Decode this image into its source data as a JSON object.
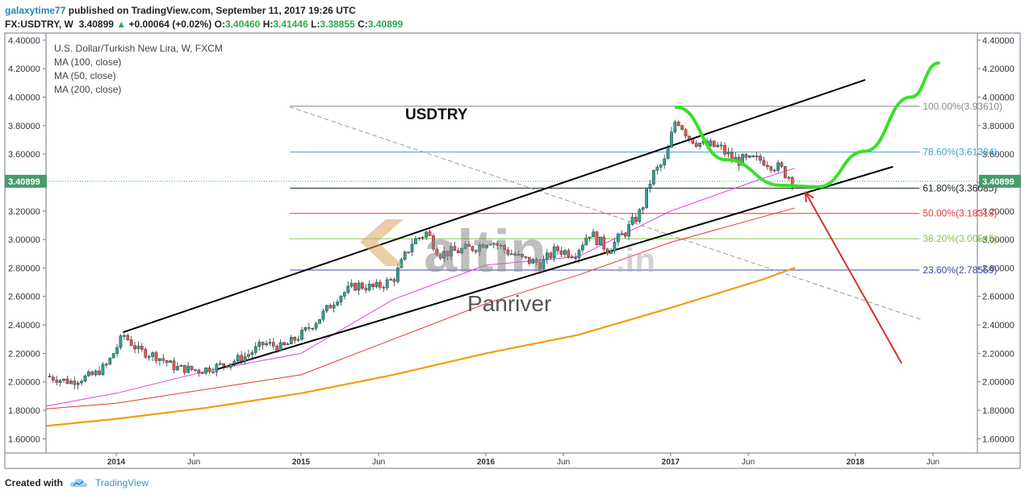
{
  "header": {
    "username": "galaxytime77",
    "published_text": "published on TradingView.com, September 11, 2017 19:26 UTC"
  },
  "quote": {
    "symbol": "FX:USDTRY, W",
    "last": "3.40899",
    "change": "+0.00064 (+0.02%)",
    "open_label": "O:",
    "open": "3.40460",
    "high_label": "H:",
    "high": "3.41446",
    "low_label": "L:",
    "low": "3.38855",
    "close_label": "C:",
    "close": "3.40899"
  },
  "legend": {
    "title": "U.S. Dollar/Turkish New Lira, W, FXCM",
    "ma100": "MA (100, close)",
    "ma50": "MA (50, close)",
    "ma200": "MA (200, close)"
  },
  "annotations": {
    "symbol_label": "USDTRY",
    "watermark_brand": "altin",
    "watermark_tld": ".in",
    "watermark_sub": "Panriver",
    "price_tag": "3.40899"
  },
  "footer": {
    "created_with": "Created with",
    "brand": "TradingView"
  },
  "colors": {
    "candle_up": "#26a69a",
    "candle_down": "#ef5350",
    "ma50": "#e040e0",
    "ma100": "#e53935",
    "ma200": "#f39c12",
    "projection": "#39e028",
    "arrow": "#d32f2f",
    "fib_100": "#888888",
    "fib_786": "#3aa0d8",
    "fib_618": "#222222",
    "fib_50": "#e53935",
    "fib_382": "#8bc34a",
    "fib_236": "#3949ab"
  },
  "chart_data": {
    "type": "candlestick",
    "title": "U.S. Dollar/Turkish New Lira, W, FXCM",
    "y_ticks": [
      "4.40000",
      "4.20000",
      "4.00000",
      "3.80000",
      "3.60000",
      "3.40000",
      "3.20000",
      "3.00000",
      "2.80000",
      "2.60000",
      "2.40000",
      "2.20000",
      "2.00000",
      "1.80000",
      "1.60000"
    ],
    "ylim": [
      1.5,
      4.45
    ],
    "x_ticks": [
      {
        "label": "2014",
        "t": 2014.0
      },
      {
        "label": "Jun",
        "t": 2014.42
      },
      {
        "label": "2015",
        "t": 2015.0
      },
      {
        "label": "Jun",
        "t": 2015.42
      },
      {
        "label": "2016",
        "t": 2016.0
      },
      {
        "label": "Jun",
        "t": 2016.42
      },
      {
        "label": "2017",
        "t": 2017.0
      },
      {
        "label": "Jun",
        "t": 2017.42
      },
      {
        "label": "2018",
        "t": 2018.0
      },
      {
        "label": "Jun",
        "t": 2018.42
      }
    ],
    "xlim": [
      2013.62,
      2018.66
    ],
    "price_path": [
      [
        2013.62,
        2.04
      ],
      [
        2013.75,
        2.0
      ],
      [
        2013.88,
        2.05
      ],
      [
        2013.95,
        2.12
      ],
      [
        2014.04,
        2.33
      ],
      [
        2014.12,
        2.22
      ],
      [
        2014.22,
        2.18
      ],
      [
        2014.32,
        2.1
      ],
      [
        2014.45,
        2.08
      ],
      [
        2014.58,
        2.12
      ],
      [
        2014.7,
        2.18
      ],
      [
        2014.8,
        2.27
      ],
      [
        2014.9,
        2.24
      ],
      [
        2015.0,
        2.33
      ],
      [
        2015.1,
        2.45
      ],
      [
        2015.2,
        2.6
      ],
      [
        2015.3,
        2.68
      ],
      [
        2015.4,
        2.66
      ],
      [
        2015.5,
        2.72
      ],
      [
        2015.6,
        2.98
      ],
      [
        2015.68,
        3.05
      ],
      [
        2015.75,
        2.9
      ],
      [
        2015.85,
        2.92
      ],
      [
        2015.95,
        2.95
      ],
      [
        2016.02,
        3.0
      ],
      [
        2016.1,
        2.93
      ],
      [
        2016.2,
        2.86
      ],
      [
        2016.3,
        2.83
      ],
      [
        2016.38,
        2.93
      ],
      [
        2016.48,
        2.9
      ],
      [
        2016.56,
        3.05
      ],
      [
        2016.66,
        2.93
      ],
      [
        2016.76,
        3.06
      ],
      [
        2016.84,
        3.2
      ],
      [
        2016.9,
        3.45
      ],
      [
        2016.97,
        3.55
      ],
      [
        2017.03,
        3.86
      ],
      [
        2017.1,
        3.72
      ],
      [
        2017.18,
        3.66
      ],
      [
        2017.26,
        3.65
      ],
      [
        2017.34,
        3.56
      ],
      [
        2017.42,
        3.55
      ],
      [
        2017.5,
        3.56
      ],
      [
        2017.56,
        3.52
      ],
      [
        2017.6,
        3.49
      ],
      [
        2017.67,
        3.41
      ]
    ],
    "ma50": [
      [
        2013.62,
        1.83
      ],
      [
        2014.0,
        1.92
      ],
      [
        2014.5,
        2.08
      ],
      [
        2015.0,
        2.2
      ],
      [
        2015.5,
        2.58
      ],
      [
        2016.0,
        2.82
      ],
      [
        2016.5,
        2.88
      ],
      [
        2017.0,
        3.2
      ],
      [
        2017.5,
        3.43
      ],
      [
        2017.67,
        3.5
      ]
    ],
    "ma100": [
      [
        2013.62,
        1.81
      ],
      [
        2014.0,
        1.85
      ],
      [
        2014.5,
        1.95
      ],
      [
        2015.0,
        2.05
      ],
      [
        2015.5,
        2.3
      ],
      [
        2016.0,
        2.55
      ],
      [
        2016.5,
        2.75
      ],
      [
        2017.0,
        2.98
      ],
      [
        2017.5,
        3.16
      ],
      [
        2017.67,
        3.22
      ]
    ],
    "ma200": [
      [
        2013.62,
        1.69
      ],
      [
        2014.0,
        1.74
      ],
      [
        2014.5,
        1.82
      ],
      [
        2015.0,
        1.92
      ],
      [
        2015.5,
        2.05
      ],
      [
        2016.0,
        2.2
      ],
      [
        2016.5,
        2.33
      ],
      [
        2017.0,
        2.52
      ],
      [
        2017.5,
        2.72
      ],
      [
        2017.67,
        2.8
      ]
    ],
    "fib_levels": [
      {
        "label": "100.00%(3.93610)",
        "value": 3.9361,
        "color": "#888888"
      },
      {
        "label": "78.60%(3.61384)",
        "value": 3.61384,
        "color": "#3aa0d8"
      },
      {
        "label": "61.80%(3.36085)",
        "value": 3.36085,
        "color": "#222222"
      },
      {
        "label": "50.00%(3.18315)",
        "value": 3.18315,
        "color": "#e53935"
      },
      {
        "label": "38.20%(3.00545)",
        "value": 3.00545,
        "color": "#8bc34a"
      },
      {
        "label": "23.60%(2.78559)",
        "value": 2.78559,
        "color": "#3949ab"
      }
    ],
    "fib_start_t": 2014.94,
    "fib_end_t": 2017.67,
    "channel_upper": [
      [
        2014.04,
        2.35
      ],
      [
        2018.05,
        4.12
      ]
    ],
    "channel_lower": [
      [
        2014.55,
        2.09
      ],
      [
        2018.2,
        3.51
      ]
    ],
    "dashed_trend": [
      [
        2014.94,
        3.93
      ],
      [
        2018.35,
        2.44
      ]
    ],
    "green_curve": [
      [
        2017.03,
        3.93
      ],
      [
        2017.3,
        3.56
      ],
      [
        2017.6,
        3.38
      ],
      [
        2017.8,
        3.37
      ],
      [
        2018.05,
        3.62
      ],
      [
        2018.3,
        4.0
      ],
      [
        2018.45,
        4.24
      ]
    ],
    "red_arrow": [
      [
        2018.25,
        2.13
      ],
      [
        2017.73,
        3.33
      ]
    ],
    "current_price": 3.40899
  }
}
